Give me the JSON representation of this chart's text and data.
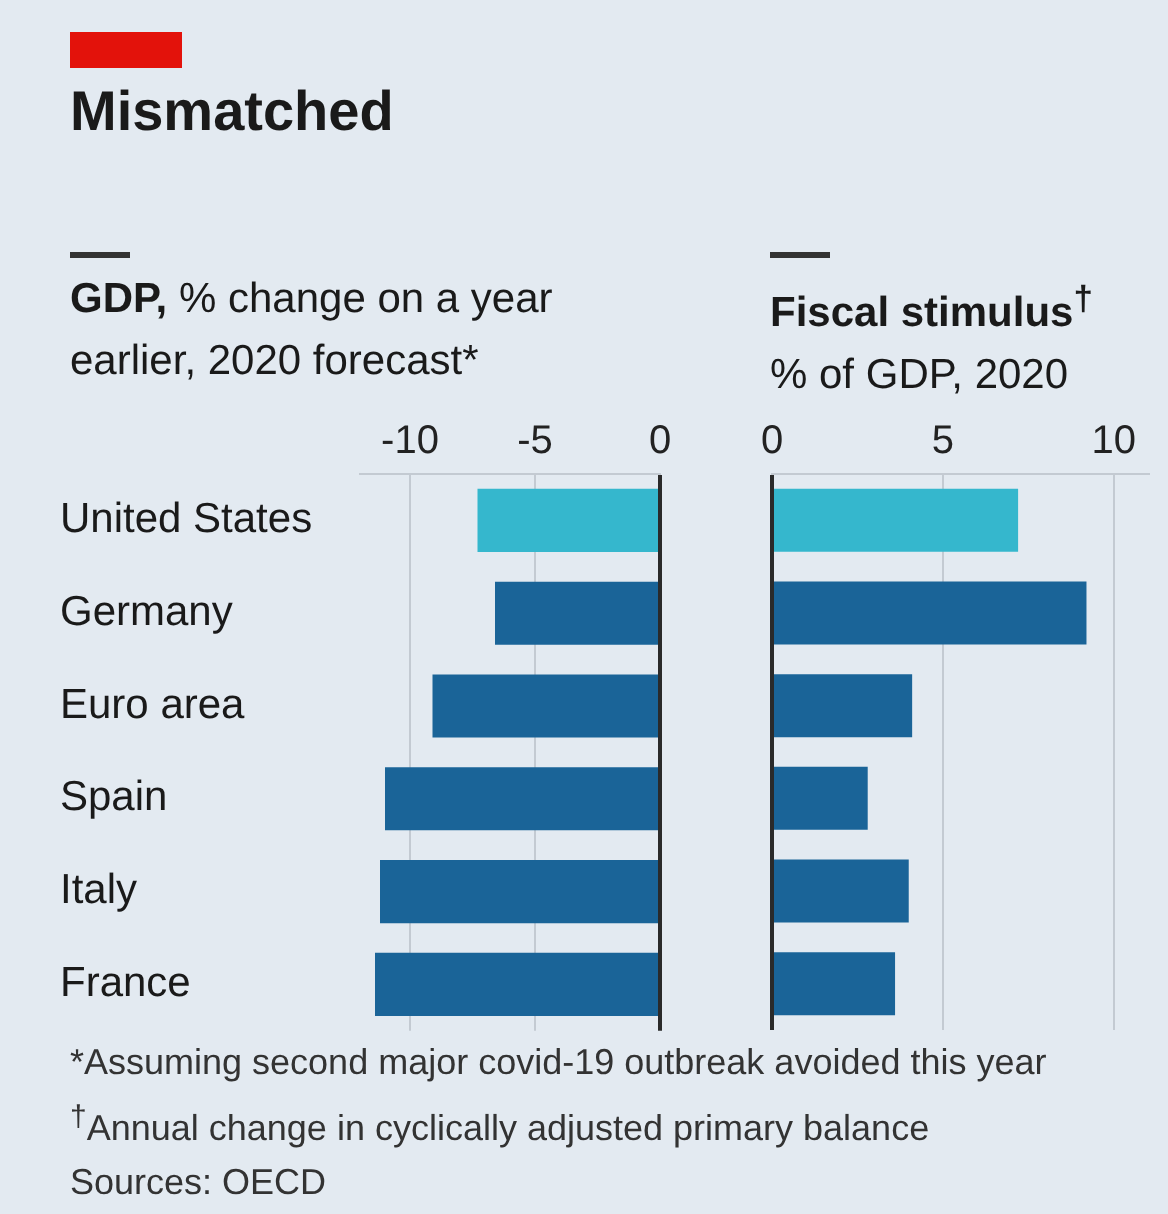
{
  "chart_data": [
    {
      "type": "bar",
      "orientation": "horizontal",
      "title": "GDP,",
      "subtitle": "% change on a year earlier, 2020 forecast*",
      "categories": [
        "United States",
        "Germany",
        "Euro area",
        "Spain",
        "Italy",
        "France"
      ],
      "values": [
        -7.3,
        -6.6,
        -9.1,
        -11.0,
        -11.2,
        -11.4
      ],
      "colors": [
        "#35b7cd",
        "#1a6498",
        "#1a6498",
        "#1a6498",
        "#1a6498",
        "#1a6498"
      ],
      "xlim": [
        -12,
        0
      ],
      "xticks": [
        -10,
        -5,
        0
      ],
      "grid": "x"
    },
    {
      "type": "bar",
      "orientation": "horizontal",
      "title": "Fiscal stimulus$^{†}$",
      "subtitle": "% of GDP, 2020",
      "categories": [
        null,
        null,
        null,
        null,
        null,
        null
      ],
      "values": [
        7.2,
        9.2,
        4.1,
        2.8,
        4.0,
        3.6
      ],
      "colors": [
        "#35b7cd",
        "#1a6498",
        "#1a6498",
        "#1a6498",
        "#1a6498",
        "#1a6498"
      ],
      "xlim": [
        0,
        11
      ],
      "xticks": [
        0,
        5,
        10
      ],
      "grid": "x",
      "tick_labels": "x"
    },
    {
      "type": "other",
      "title": "Mismatched",
      "annotations": [
        "*Assuming second major covid-19 outbreak avoided this year",
        "$^{†}$Annual change in cyclically adjusted primary balance",
        "Sources: OECD"
      ]
    }
  ]
}
